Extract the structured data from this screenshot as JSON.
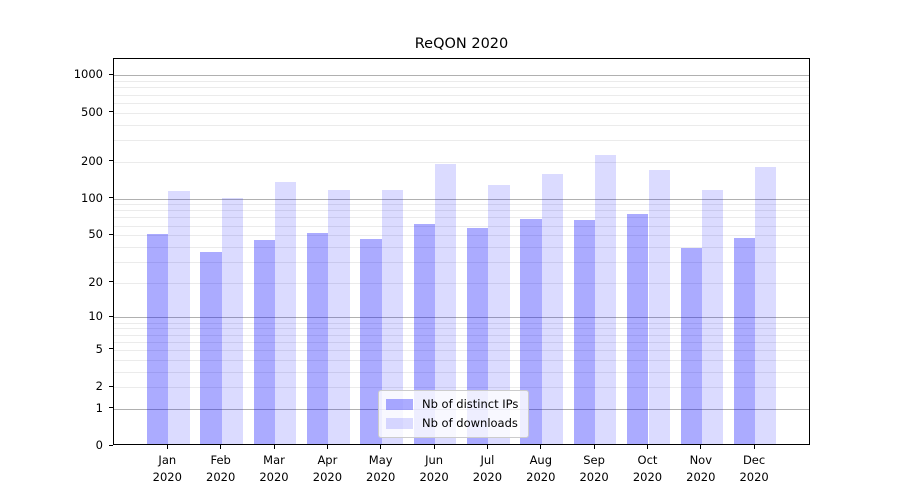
{
  "chart_data": {
    "type": "bar",
    "title": "ReQON 2020",
    "x_month_labels": [
      "Jan",
      "Feb",
      "Mar",
      "Apr",
      "May",
      "Jun",
      "Jul",
      "Aug",
      "Sep",
      "Oct",
      "Nov",
      "Dec"
    ],
    "x_year_label": "2020",
    "series": [
      {
        "name": "Nb of distinct IPs",
        "color": "rgba(0,0,255,0.33)",
        "values": [
          49,
          35,
          44,
          50,
          45,
          60,
          55,
          66,
          64,
          72,
          38,
          46
        ]
      },
      {
        "name": "Nb of downloads",
        "color": "rgba(0,0,255,0.14)",
        "values": [
          110,
          97,
          132,
          113,
          113,
          183,
          125,
          152,
          218,
          164,
          112,
          173
        ]
      }
    ],
    "y_axis": {
      "scale": "log10(value+1)",
      "tick_values": [
        0,
        1,
        2,
        5,
        10,
        20,
        50,
        100,
        200,
        500,
        1000
      ],
      "tick_labels": [
        "0",
        "1",
        "2",
        "5",
        "10",
        "20",
        "50",
        "100",
        "200",
        "500",
        "1000"
      ],
      "major_gridline_values": [
        1,
        10,
        100,
        1000
      ],
      "minor_gridline_values": [
        2,
        3,
        4,
        5,
        6,
        7,
        8,
        9,
        20,
        30,
        40,
        50,
        60,
        70,
        80,
        90,
        200,
        300,
        400,
        500,
        600,
        700,
        800,
        900
      ],
      "ylim": [
        0,
        1360
      ],
      "grid": "on"
    },
    "legend_position": "lower center",
    "colors": {
      "major_grid": "#b0b0b0",
      "minor_grid": "#ebebeb",
      "spine": "#000000",
      "text": "#000000",
      "background": "#ffffff"
    }
  }
}
